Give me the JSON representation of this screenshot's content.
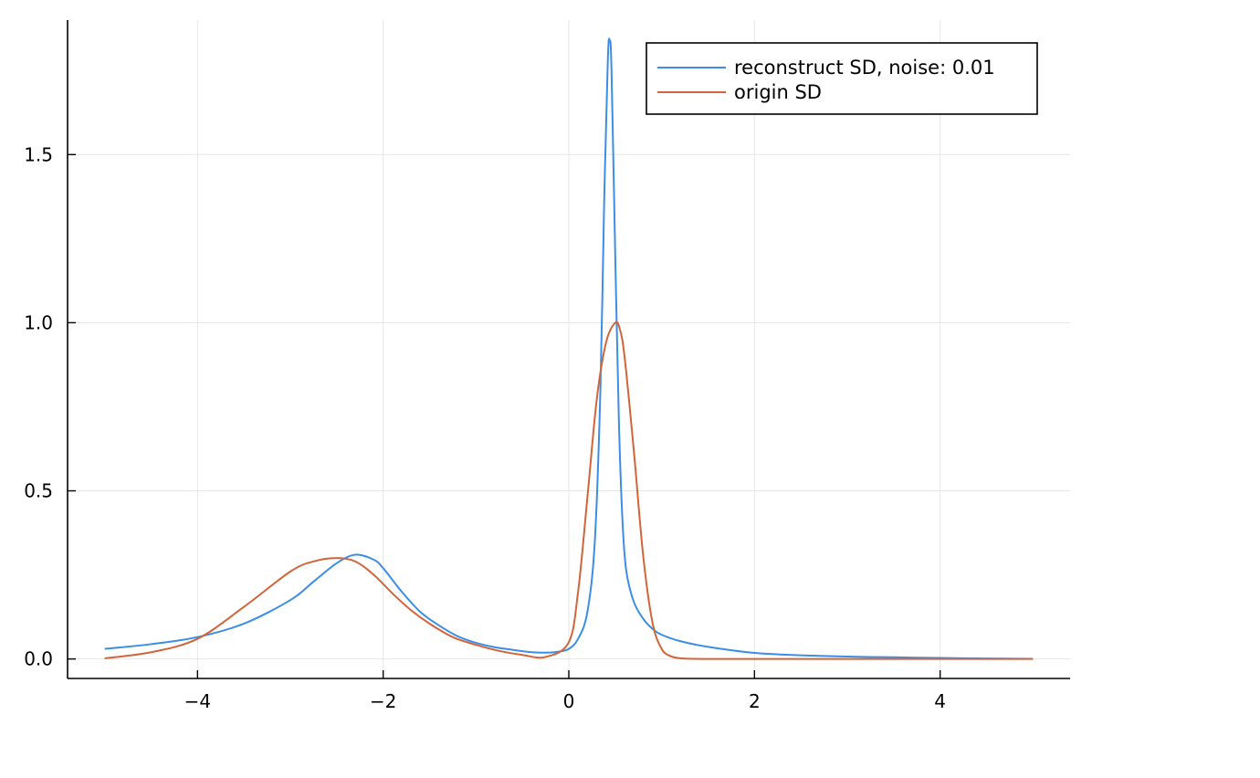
{
  "chart_data": {
    "type": "line",
    "title": "",
    "xlabel": "",
    "ylabel": "",
    "xlim": [
      -5.4,
      5.4
    ],
    "ylim": [
      -0.058,
      1.9
    ],
    "xticks": [
      -4,
      -2,
      0,
      2,
      4
    ],
    "xtick_labels": [
      "−4",
      "−2",
      "0",
      "2",
      "4"
    ],
    "yticks": [
      0.0,
      0.5,
      1.0,
      1.5
    ],
    "ytick_labels": [
      "0.0",
      "0.5",
      "1.0",
      "1.5"
    ],
    "grid": true,
    "legend_position": "top-right",
    "series": [
      {
        "name": "reconstruct SD, noise: 0.01",
        "color": "#3a8ee6",
        "x": [
          -5.0,
          -4.5,
          -4.0,
          -3.5,
          -3.0,
          -2.75,
          -2.5,
          -2.3,
          -2.1,
          -2.0,
          -1.8,
          -1.6,
          -1.4,
          -1.2,
          -1.0,
          -0.8,
          -0.6,
          -0.4,
          -0.2,
          -0.1,
          0.0,
          0.1,
          0.2,
          0.28,
          0.34,
          0.38,
          0.42,
          0.44,
          0.46,
          0.5,
          0.54,
          0.58,
          0.62,
          0.7,
          0.8,
          0.9,
          1.0,
          1.2,
          1.5,
          2.0,
          2.5,
          3.0,
          3.5,
          4.0,
          4.5,
          5.0
        ],
        "y": [
          0.03,
          0.044,
          0.065,
          0.105,
          0.175,
          0.23,
          0.285,
          0.31,
          0.295,
          0.27,
          0.2,
          0.14,
          0.1,
          0.068,
          0.048,
          0.035,
          0.027,
          0.02,
          0.019,
          0.022,
          0.03,
          0.06,
          0.14,
          0.35,
          0.8,
          1.35,
          1.78,
          1.84,
          1.75,
          1.2,
          0.7,
          0.4,
          0.26,
          0.17,
          0.12,
          0.09,
          0.072,
          0.053,
          0.036,
          0.018,
          0.011,
          0.007,
          0.005,
          0.003,
          0.0015,
          0.0005
        ]
      },
      {
        "name": "origin SD",
        "color": "#d2643a",
        "x": [
          -5.0,
          -4.5,
          -4.0,
          -3.5,
          -3.0,
          -2.75,
          -2.5,
          -2.3,
          -2.1,
          -1.9,
          -1.7,
          -1.5,
          -1.25,
          -1.0,
          -0.75,
          -0.5,
          -0.25,
          0.0,
          0.1,
          0.2,
          0.3,
          0.4,
          0.5,
          0.55,
          0.6,
          0.7,
          0.8,
          0.9,
          1.0,
          1.1,
          1.2,
          1.3,
          1.5,
          2.0,
          3.0,
          4.0,
          5.0
        ],
        "y": [
          0.002,
          0.02,
          0.06,
          0.155,
          0.26,
          0.29,
          0.3,
          0.29,
          0.25,
          0.195,
          0.145,
          0.105,
          0.065,
          0.042,
          0.024,
          0.012,
          0.006,
          0.05,
          0.2,
          0.48,
          0.77,
          0.94,
          1.0,
          0.98,
          0.9,
          0.62,
          0.31,
          0.11,
          0.03,
          0.008,
          0.002,
          0.0006,
          0.0,
          0.0,
          0.0,
          0.0,
          0.0
        ]
      }
    ]
  }
}
